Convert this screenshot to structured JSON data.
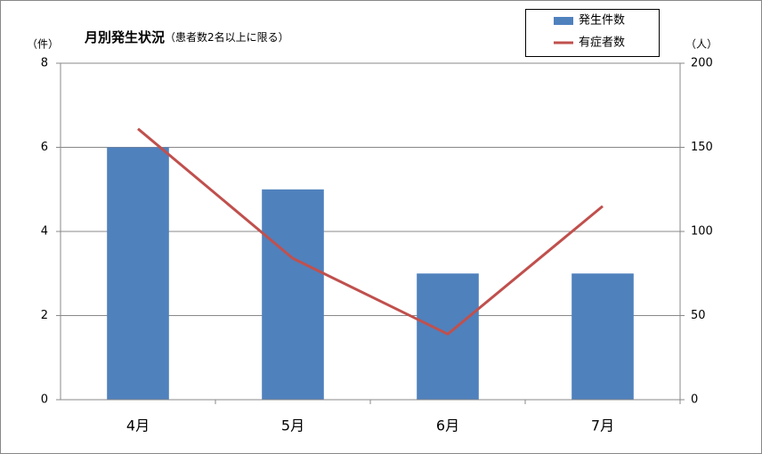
{
  "chart_data": {
    "type": "bar",
    "title": "月別発生状況",
    "subtitle": "（患者数2名以上に限る）",
    "y_label": "（件）",
    "y2_label": "（人）",
    "categories": [
      "4月",
      "5月",
      "6月",
      "7月"
    ],
    "series": [
      {
        "name": "発生件数",
        "type": "bar",
        "color": "#4f81bd",
        "values": [
          6,
          5,
          3,
          3
        ]
      },
      {
        "name": "有症者数",
        "type": "line",
        "axis": "y2",
        "color": "#c0504d",
        "values": [
          161,
          84,
          39,
          115
        ]
      }
    ],
    "ylim": [
      0,
      8
    ],
    "yticks": [
      0,
      2,
      4,
      6,
      8
    ],
    "y2lim": [
      0,
      200
    ],
    "y2ticks": [
      0,
      50,
      100,
      150,
      200
    ],
    "grid": true,
    "legend": "top-right"
  }
}
